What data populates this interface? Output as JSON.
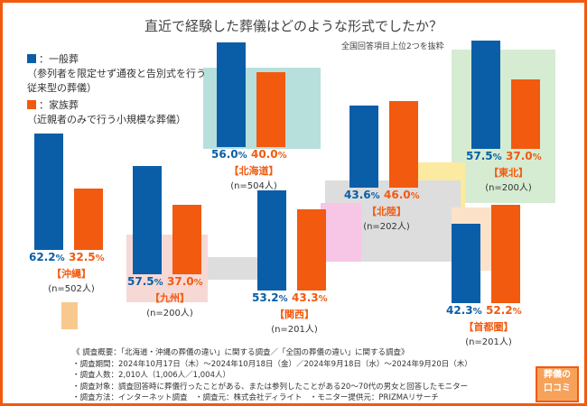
{
  "chart_data": {
    "type": "bar",
    "title": "直近で経験した葬儀はどのような形式でしたか？",
    "subtitle": "全国回答項目上位2つを抜粋",
    "ylim": [
      0,
      100
    ],
    "series": [
      {
        "name": "一般葬",
        "description": "（参列者を限定せず通夜と告別式を行う従来型の葬儀）",
        "color": "#0a5ea8"
      },
      {
        "name": "家族葬",
        "description": "（近親者のみで行う小規模な葬儀）",
        "color": "#f25a0f"
      }
    ],
    "regions": [
      {
        "name": "【北海道】",
        "n": "(n=504人)",
        "values": [
          56.0,
          40.0
        ],
        "labels": [
          "56.0",
          "40.0"
        ]
      },
      {
        "name": "【東北】",
        "n": "(n=200人)",
        "values": [
          57.5,
          37.0
        ],
        "labels": [
          "57.5",
          "37.0"
        ]
      },
      {
        "name": "【沖縄】",
        "n": "(n=502人)",
        "values": [
          62.2,
          32.5
        ],
        "labels": [
          "62.2",
          "32.5"
        ]
      },
      {
        "name": "【九州】",
        "n": "(n=200人)",
        "values": [
          57.5,
          37.0
        ],
        "labels": [
          "57.5",
          "37.0"
        ]
      },
      {
        "name": "【関西】",
        "n": "(n=201人)",
        "values": [
          53.2,
          43.3
        ],
        "labels": [
          "53.2",
          "43.3"
        ]
      },
      {
        "name": "【北陸】",
        "n": "(n=202人)",
        "values": [
          43.6,
          46.0
        ],
        "labels": [
          "43.6",
          "46.0"
        ]
      },
      {
        "name": "【首都圏】",
        "n": "(n=201人)",
        "values": [
          42.3,
          52.2
        ],
        "labels": [
          "42.3",
          "52.2"
        ]
      }
    ],
    "unit": "%"
  },
  "legend_prefix": "：",
  "notes": [
    "《 調査概要：「北海道・沖縄の葬儀の違い」に関する調査／「全国の葬儀の違い」に関する調査》",
    "・調査期間：2024年10月17日（木）～2024年10月18日（金）／2024年9月18日（水）～2024年9月20日（木）",
    "・調査人数：2,010人（1,006人／1,004人）",
    "・調査対象：調査回答時に葬儀行ったことがある、または参列したことがある20～70代の男女と回答したモニター",
    "・調査方法：インターネット調査　・調査元：株式会社ディライト　・モニター提供元：PRIZMAリサーチ"
  ],
  "logo": {
    "line1": "葬儀の",
    "line2": "口コミ"
  }
}
